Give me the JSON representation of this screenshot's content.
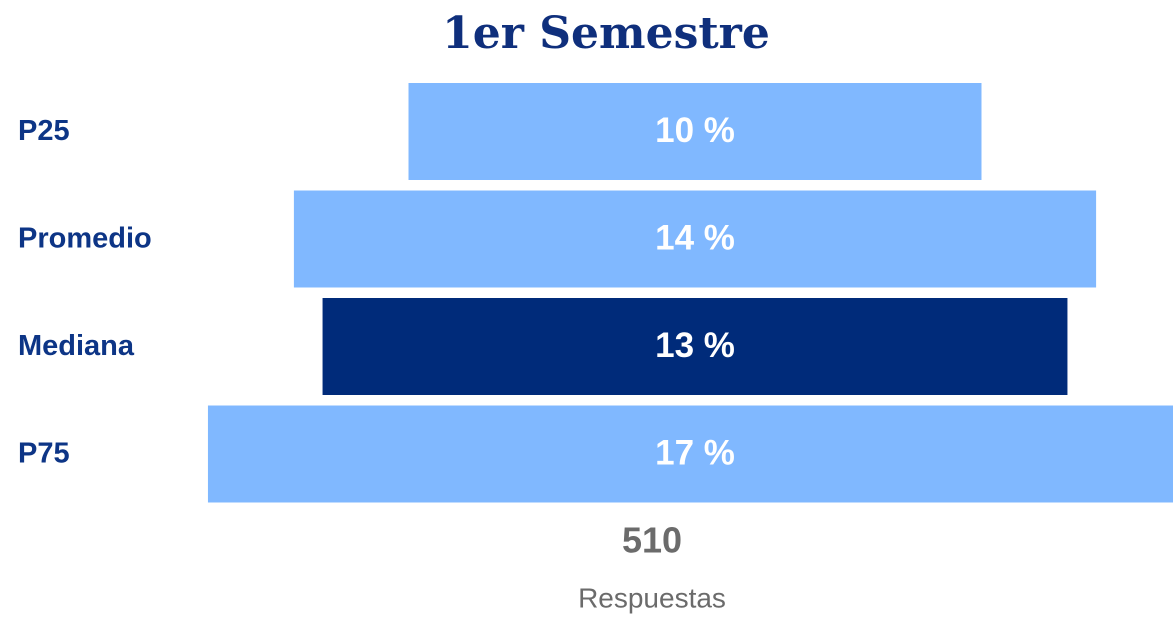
{
  "chart_data": {
    "type": "funnel",
    "title": "1er Semestre",
    "categories": [
      "P25",
      "Promedio",
      "Mediana",
      "P75"
    ],
    "values": [
      10,
      14,
      13,
      17
    ],
    "value_labels": [
      "10 %",
      "14 %",
      "13 %",
      "17 %"
    ],
    "colors": [
      "#80b8ff",
      "#80b8ff",
      "#002b7a",
      "#80b8ff"
    ],
    "total": 510,
    "total_label": "Respuestas"
  }
}
